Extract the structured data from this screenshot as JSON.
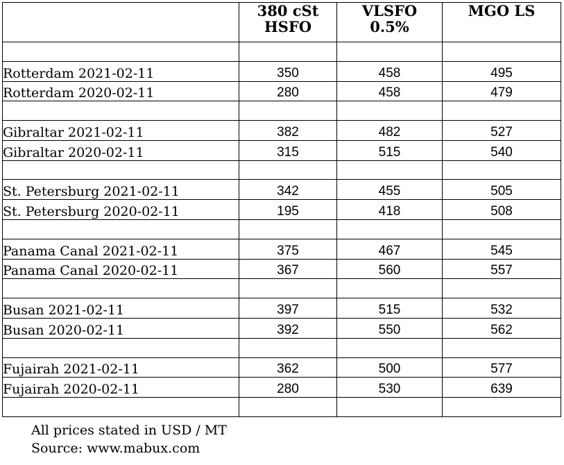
{
  "table": {
    "headers": [
      "",
      "380 cSt\nHSFO",
      "VLSFO\n0.5%",
      "MGO LS"
    ],
    "rows": [
      {
        "type": "blank"
      },
      {
        "type": "data",
        "label": "Rotterdam 2021-02-11",
        "values": [
          "350",
          "458",
          "495"
        ]
      },
      {
        "type": "data",
        "label": "Rotterdam 2020-02-11",
        "values": [
          "280",
          "458",
          "479"
        ]
      },
      {
        "type": "blank"
      },
      {
        "type": "data",
        "label": "Gibraltar 2021-02-11",
        "values": [
          "382",
          "482",
          "527"
        ]
      },
      {
        "type": "data",
        "label": "Gibraltar 2020-02-11",
        "values": [
          "315",
          "515",
          "540"
        ]
      },
      {
        "type": "blank"
      },
      {
        "type": "data",
        "label": "St. Petersburg 2021-02-11",
        "values": [
          "342",
          "455",
          "505"
        ]
      },
      {
        "type": "data",
        "label": "St. Petersburg 2020-02-11",
        "values": [
          "195",
          "418",
          "508"
        ]
      },
      {
        "type": "blank"
      },
      {
        "type": "data",
        "label": "Panama Canal 2021-02-11",
        "values": [
          "375",
          "467",
          "545"
        ]
      },
      {
        "type": "data",
        "label": "Panama Canal 2020-02-11",
        "values": [
          "367",
          "560",
          "557"
        ]
      },
      {
        "type": "blank"
      },
      {
        "type": "data",
        "label": "Busan 2021-02-11",
        "values": [
          "397",
          "515",
          "532"
        ]
      },
      {
        "type": "data",
        "label": "Busan 2020-02-11",
        "values": [
          "392",
          "550",
          "562"
        ]
      },
      {
        "type": "blank"
      },
      {
        "type": "data",
        "label": "Fujairah 2021-02-11",
        "values": [
          "362",
          "500",
          "577"
        ]
      },
      {
        "type": "data",
        "label": "Fujairah 2020-02-11",
        "values": [
          "280",
          "530",
          "639"
        ]
      },
      {
        "type": "blank"
      }
    ]
  },
  "footer": {
    "note": "All prices stated in USD / MT",
    "source": "Source: www.mabux.com"
  }
}
